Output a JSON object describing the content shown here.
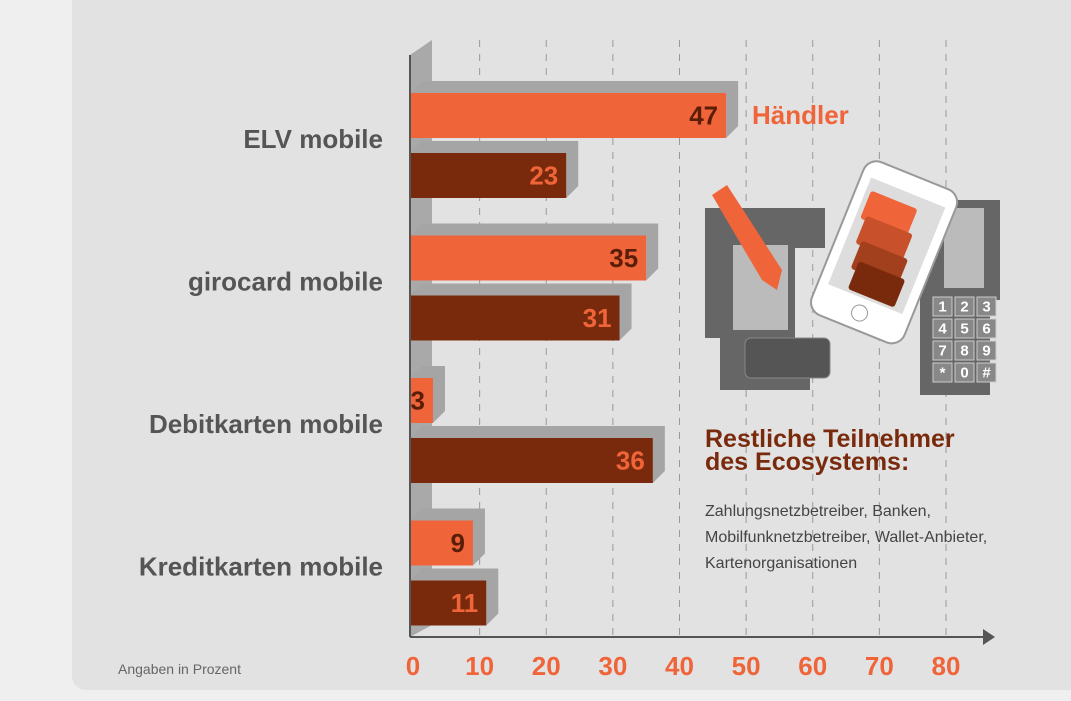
{
  "chart_data": {
    "type": "hbar",
    "categories": [
      "ELV mobile",
      "girocard mobile",
      "Debitkarten mobile",
      "Kreditkarten mobile"
    ],
    "series": [
      {
        "name": "Händler",
        "color": "#f0643a",
        "values": [
          47,
          35,
          3,
          9
        ]
      },
      {
        "name": "Restliche Teilnehmer des Ecosystems:",
        "color": "#7a2a0c",
        "values": [
          23,
          31,
          36,
          11
        ]
      }
    ],
    "series_note": "Zahlungsnetzbetreiber, Banken, Mobilfunknetzbetreiber, Wallet-Anbieter, Kartenorganisationen",
    "note": "Angaben in Prozent",
    "xlim": [
      0,
      80
    ],
    "xticks": [
      0,
      10,
      20,
      30,
      40,
      50,
      60,
      70,
      80
    ],
    "grid": true,
    "keypad": [
      "1",
      "2",
      "3",
      "4",
      "5",
      "6",
      "7",
      "8",
      "9",
      "*",
      "0",
      "#"
    ]
  }
}
